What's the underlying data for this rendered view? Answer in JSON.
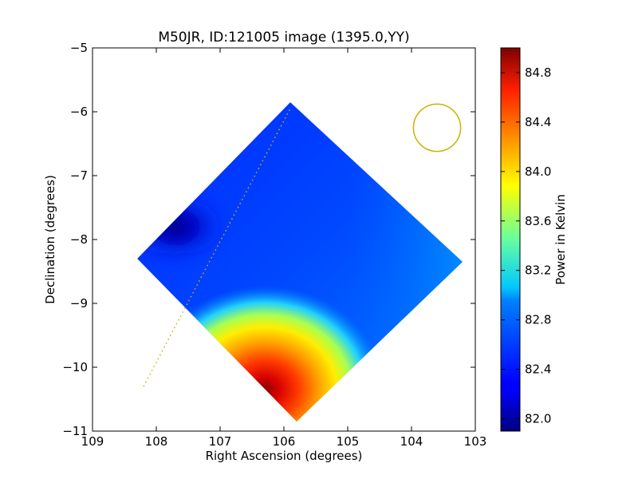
{
  "chart_data": {
    "type": "heatmap",
    "title": "M50JR, ID:121005 image (1395.0,YY)",
    "xlabel": "Right Ascension (degrees)",
    "ylabel": "Declination (degrees)",
    "xlim": [
      109,
      103
    ],
    "ylim": [
      -11,
      -5
    ],
    "x_ticks": [
      "109",
      "108",
      "107",
      "106",
      "105",
      "104",
      "103"
    ],
    "y_ticks": [
      "−5",
      "−6",
      "−7",
      "−8",
      "−9",
      "−10",
      "−11"
    ],
    "x_tick_values": [
      109,
      108,
      107,
      106,
      105,
      104,
      103
    ],
    "y_tick_values": [
      -5,
      -6,
      -7,
      -8,
      -9,
      -10,
      -11
    ],
    "x_axis_inverted": true,
    "colorbar": {
      "label": "Power in Kelvin",
      "colormap": "jet",
      "min": 81.9,
      "max": 85.0,
      "ticks": [
        "82.0",
        "82.4",
        "82.8",
        "83.2",
        "83.6",
        "84.0",
        "84.4",
        "84.8"
      ],
      "tick_values": [
        82.0,
        82.4,
        82.8,
        83.2,
        83.6,
        84.0,
        84.4,
        84.8
      ]
    },
    "map_footprint": {
      "shape": "diamond",
      "vertices_ra_dec": [
        [
          105.9,
          -5.85
        ],
        [
          103.2,
          -8.35
        ],
        [
          105.8,
          -10.85
        ],
        [
          108.3,
          -8.3
        ]
      ]
    },
    "features": [
      {
        "name": "hot spot",
        "ra": 106.3,
        "dec": -10.35,
        "value": 85.0
      },
      {
        "name": "cold region",
        "ra": 107.7,
        "dec": -7.8,
        "value": 81.9
      }
    ],
    "beam_circle": {
      "ra": 103.6,
      "dec": -6.25,
      "radius_deg": 0.37,
      "color": "#c8b400"
    },
    "dotted_line": {
      "from": [
        108.2,
        -10.3
      ],
      "to": [
        105.9,
        -5.95
      ],
      "color": "#c8b400"
    }
  }
}
